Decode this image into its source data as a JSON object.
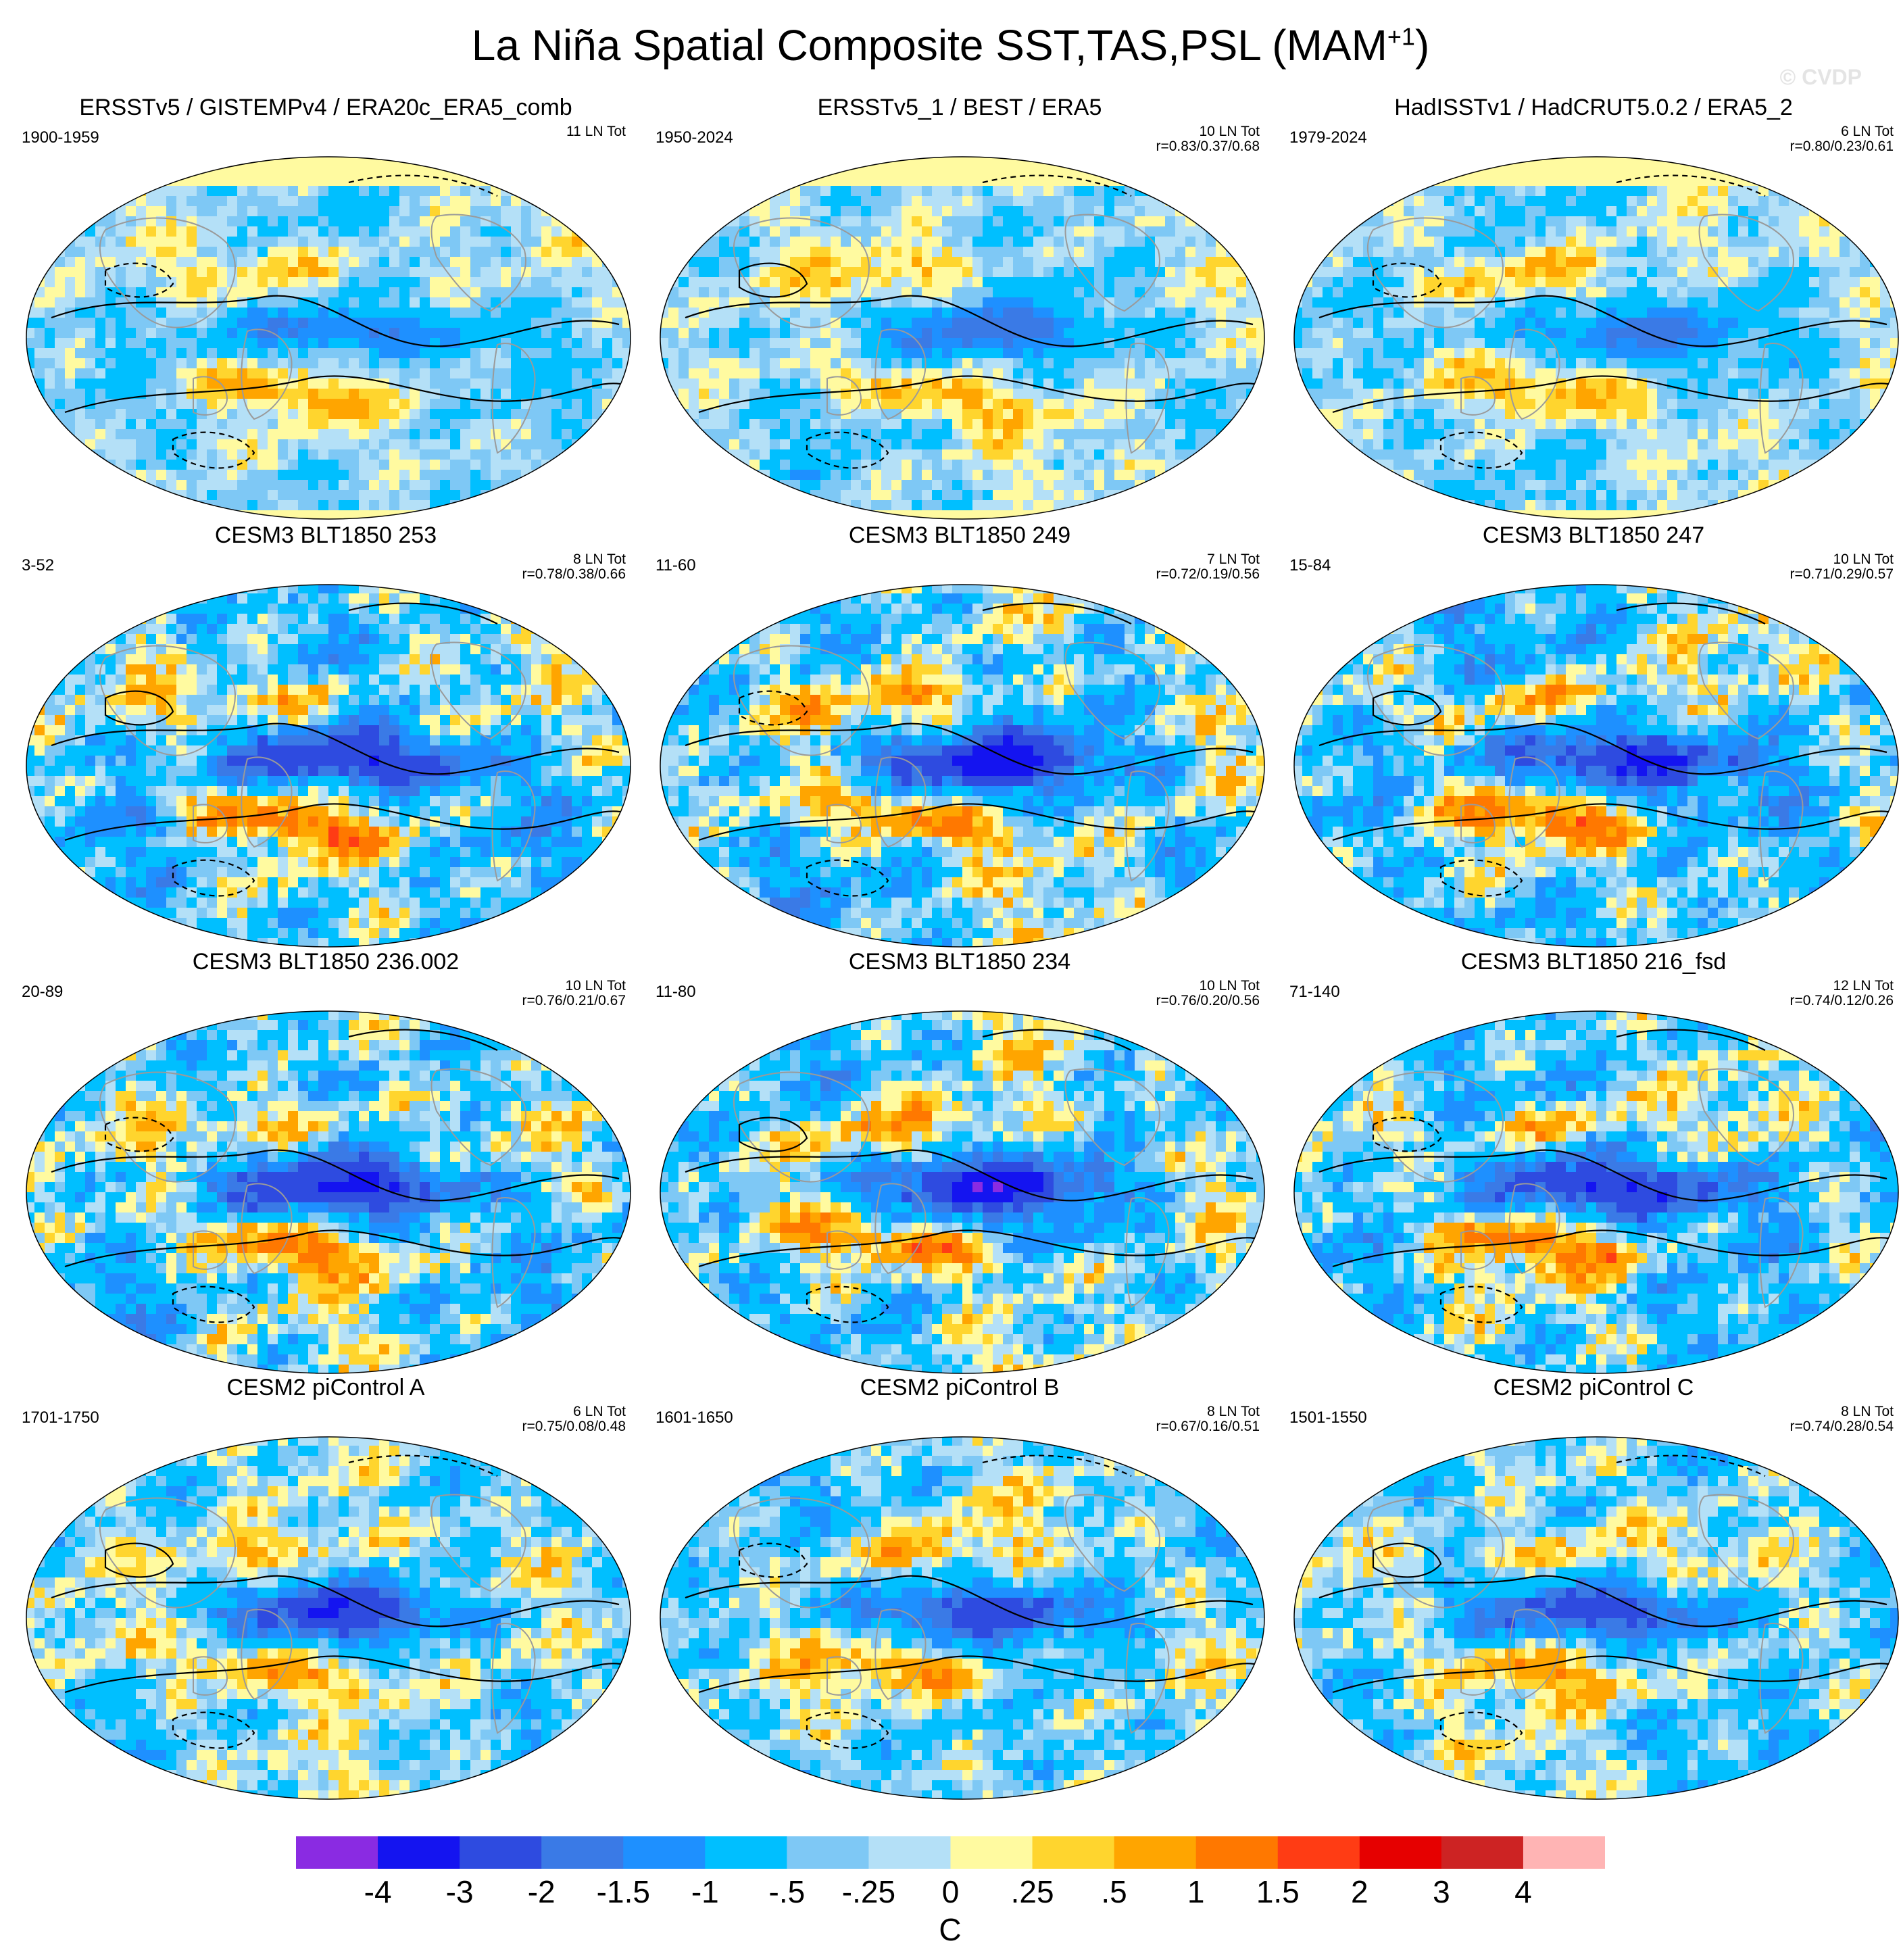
{
  "title": "La Niña Spatial Composite SST,TAS,PSL (MAM",
  "title_superscript": "+1",
  "title_close": ")",
  "watermark": "© CVDP",
  "chart_data": {
    "type": "heatmap",
    "description_units": "C",
    "colorbar": {
      "units": "C",
      "tick_labels": [
        "-4",
        "-3",
        "-2",
        "-1.5",
        "-1",
        "-.5",
        "-.25",
        "0",
        ".25",
        ".5",
        "1",
        "1.5",
        "2",
        "3",
        "4"
      ],
      "colors": [
        "#8a2be2",
        "#1414f0",
        "#2e4be0",
        "#3a7ae6",
        "#1e90ff",
        "#00bfff",
        "#7ec8f5",
        "#b4e0f7",
        "#fffaa0",
        "#ffd52e",
        "#ffa500",
        "#ff7800",
        "#ff3c14",
        "#e60000",
        "#cd2323",
        "#ffb4b4"
      ]
    },
    "panels": [
      {
        "title": "ERSSTv5 / GISTEMPv4 / ERA20c_ERA5_comb",
        "years": "1900-1959",
        "tot_line1": "11 LN Tot",
        "tot_line2": "",
        "style": "obs1",
        "seed": 1
      },
      {
        "title": "ERSSTv5_1 / BEST / ERA5",
        "years": "1950-2024",
        "tot_line1": "10 LN Tot",
        "tot_line2": "r=0.83/0.37/0.68",
        "style": "obs2",
        "seed": 2
      },
      {
        "title": "HadISSTv1 / HadCRUT5.0.2 / ERA5_2",
        "years": "1979-2024",
        "tot_line1": "6 LN Tot",
        "tot_line2": "r=0.80/0.23/0.61",
        "style": "obs3",
        "seed": 3
      },
      {
        "title": "CESM3 BLT1850 253",
        "years": "3-52",
        "tot_line1": "8 LN Tot",
        "tot_line2": "r=0.78/0.38/0.66",
        "style": "model",
        "seed": 4
      },
      {
        "title": "CESM3 BLT1850 249",
        "years": "11-60",
        "tot_line1": "7 LN Tot",
        "tot_line2": "r=0.72/0.19/0.56",
        "style": "model",
        "seed": 5
      },
      {
        "title": "CESM3 BLT1850 247",
        "years": "15-84",
        "tot_line1": "10 LN Tot",
        "tot_line2": "r=0.71/0.29/0.57",
        "style": "model",
        "seed": 6
      },
      {
        "title": "CESM3 BLT1850 236.002",
        "years": "20-89",
        "tot_line1": "10 LN Tot",
        "tot_line2": "r=0.76/0.21/0.67",
        "style": "model",
        "seed": 7
      },
      {
        "title": "CESM3 BLT1850 234",
        "years": "11-80",
        "tot_line1": "10 LN Tot",
        "tot_line2": "r=0.76/0.20/0.56",
        "style": "model",
        "seed": 8
      },
      {
        "title": "CESM3 BLT1850 216_fsd",
        "years": "71-140",
        "tot_line1": "12 LN Tot",
        "tot_line2": "r=0.74/0.12/0.26",
        "style": "model",
        "seed": 9
      },
      {
        "title": "CESM2 piControl A",
        "years": "1701-1750",
        "tot_line1": "6 LN Tot",
        "tot_line2": "r=0.75/0.08/0.48",
        "style": "pi",
        "seed": 10
      },
      {
        "title": "CESM2 piControl B",
        "years": "1601-1650",
        "tot_line1": "8 LN Tot",
        "tot_line2": "r=0.67/0.16/0.51",
        "style": "pi",
        "seed": 11
      },
      {
        "title": "CESM2 piControl C",
        "years": "1501-1550",
        "tot_line1": "8 LN Tot",
        "tot_line2": "r=0.74/0.28/0.54",
        "style": "pi",
        "seed": 12
      }
    ]
  }
}
